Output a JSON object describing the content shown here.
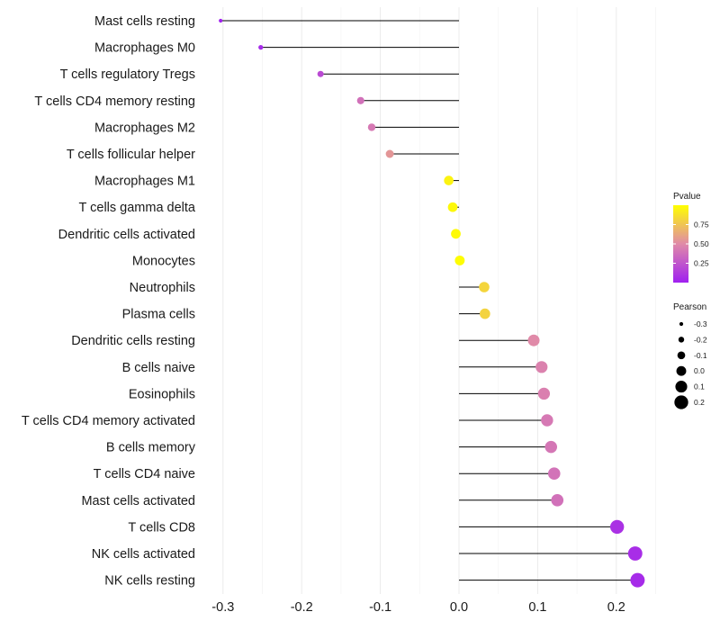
{
  "chart_data": {
    "type": "lollipop",
    "title": "",
    "xlabel": "",
    "ylabel": "",
    "xlim": [
      -0.31,
      0.25
    ],
    "xticks": [
      -0.3,
      -0.2,
      -0.1,
      0.0,
      0.1,
      0.2
    ],
    "xtick_labels": [
      "-0.3",
      "-0.2",
      "-0.1",
      "0.0",
      "0.1",
      "0.2"
    ],
    "grid": true,
    "baseline": 0.0,
    "categories": [
      "Mast cells resting",
      "Macrophages M0",
      "T cells regulatory  Tregs ",
      "T cells CD4 memory resting",
      "Macrophages M2",
      "T cells follicular helper",
      "Macrophages M1",
      "T cells gamma delta",
      "Dendritic cells activated",
      "Monocytes",
      "Neutrophils",
      "Plasma cells",
      "Dendritic cells resting",
      "B cells naive",
      "Eosinophils",
      "T cells CD4 memory activated",
      "B cells memory",
      "T cells CD4 naive",
      "Mast cells activated",
      "T cells CD8",
      "NK cells activated",
      "NK cells resting"
    ],
    "series": [
      {
        "name": "Pearson",
        "values": [
          -0.303,
          -0.252,
          -0.176,
          -0.125,
          -0.111,
          -0.088,
          -0.013,
          -0.008,
          -0.004,
          0.001,
          0.032,
          0.033,
          0.095,
          0.105,
          0.108,
          0.112,
          0.117,
          0.121,
          0.125,
          0.201,
          0.224,
          0.227
        ]
      },
      {
        "name": "Pvalue",
        "values": [
          0.01,
          0.05,
          0.2,
          0.38,
          0.42,
          0.55,
          0.95,
          0.97,
          0.98,
          0.99,
          0.82,
          0.81,
          0.5,
          0.46,
          0.45,
          0.42,
          0.41,
          0.39,
          0.38,
          0.08,
          0.06,
          0.05
        ]
      }
    ],
    "legend": {
      "placement": "right",
      "color": {
        "title": "Pvalue",
        "ticks": [
          "0.75",
          "0.50",
          "0.25"
        ],
        "tick_values": [
          0.75,
          0.5,
          0.25
        ],
        "range": [
          0.0,
          1.0
        ],
        "low_color": "#A020F0",
        "mid_color": "#E08AA8",
        "high_color": "#FFFF00"
      },
      "size": {
        "title": "Pearson",
        "labels": [
          "-0.3",
          "-0.2",
          "-0.1",
          "0.0",
          "0.1",
          "0.2"
        ],
        "values": [
          -0.3,
          -0.2,
          -0.1,
          0.0,
          0.1,
          0.2
        ]
      }
    }
  }
}
